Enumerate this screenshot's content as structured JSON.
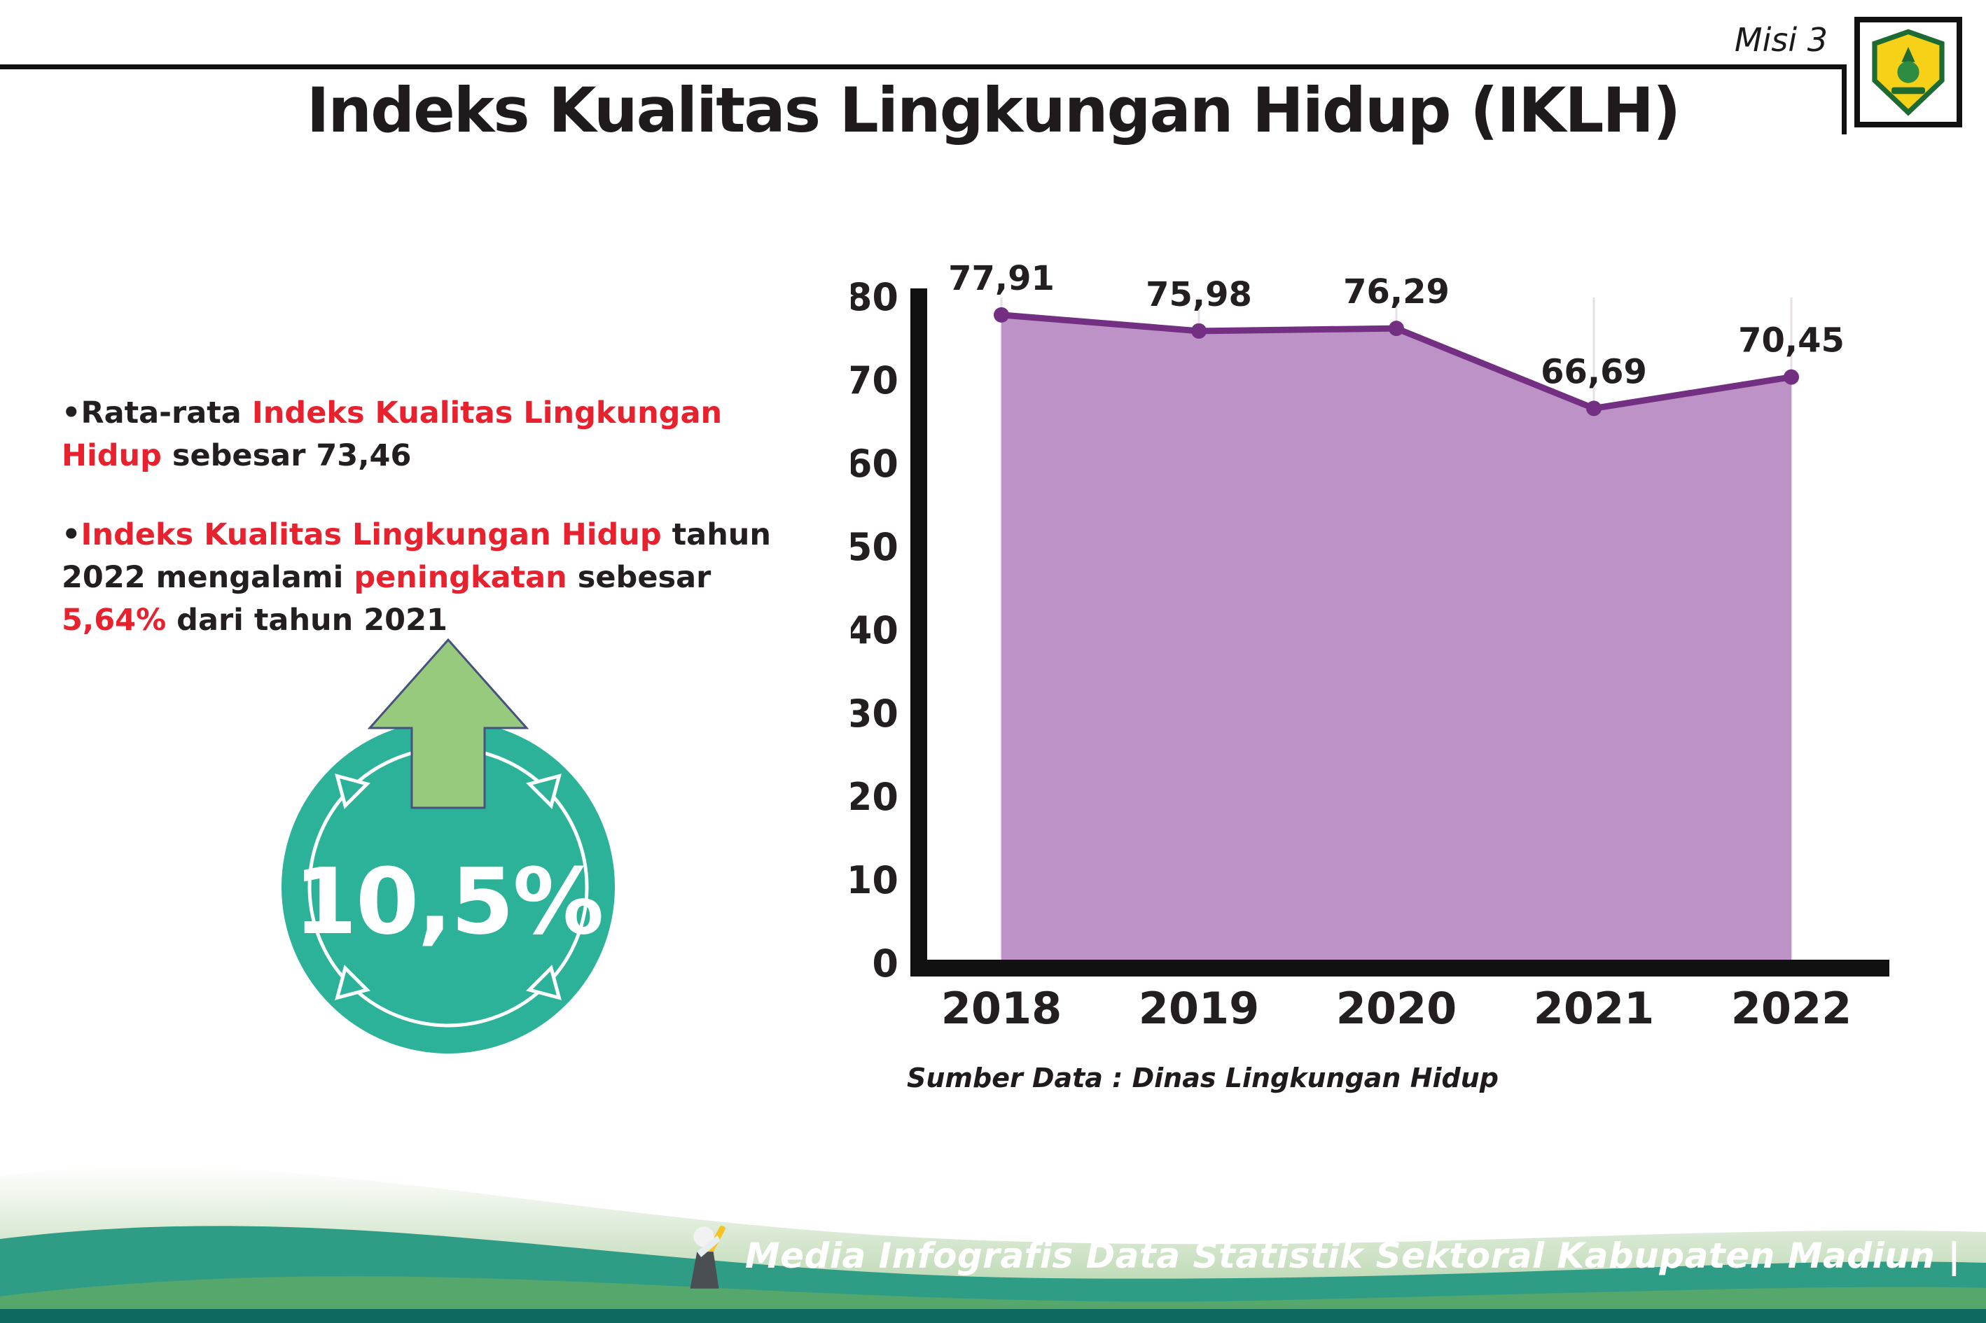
{
  "header": {
    "misi_label": "Misi 3",
    "title": "Indeks Kualitas Lingkungan Hidup (IKLH)",
    "logo_icon": "kabupaten-madiun-crest"
  },
  "colors": {
    "accent_red": "#e8212e",
    "text_black": "#231f20",
    "area_fill": "#bd92c7",
    "line_purple": "#732f82",
    "badge_teal": "#2bb298",
    "arrow_green": "#97ca7d",
    "footer_teal": "#2f9c86",
    "footer_green": "#55a76c",
    "gridline": "#e5dfe8",
    "axis_black": "#111111"
  },
  "bullets": [
    {
      "segments": [
        {
          "text": "•Rata-rata ",
          "color": "#231f20"
        },
        {
          "text": "Indeks Kualitas Lingkungan Hidup",
          "color": "#e8212e"
        },
        {
          "text": " sebesar 73,46",
          "color": "#231f20"
        }
      ]
    },
    {
      "segments": [
        {
          "text": "•",
          "color": "#231f20"
        },
        {
          "text": "Indeks Kualitas Lingkungan Hidup",
          "color": "#e8212e"
        },
        {
          "text": " tahun 2022 mengalami ",
          "color": "#231f20"
        },
        {
          "text": "peningkatan",
          "color": "#e8212e"
        },
        {
          "text": " sebesar ",
          "color": "#231f20"
        },
        {
          "text": "5,64%",
          "color": "#e8212e"
        },
        {
          "text": " dari tahun 2021",
          "color": "#231f20"
        }
      ]
    }
  ],
  "badge": {
    "value": "10,5%",
    "icon": "arrow-up-icon"
  },
  "chart_data": {
    "type": "area",
    "title": "",
    "xlabel": "",
    "ylabel": "",
    "categories": [
      "2018",
      "2019",
      "2020",
      "2021",
      "2022"
    ],
    "values": [
      77.91,
      75.98,
      76.29,
      66.69,
      70.45
    ],
    "value_labels": [
      "77,91",
      "75,98",
      "76,29",
      "66,69",
      "70,45"
    ],
    "ylim": [
      0,
      80
    ],
    "yticks": [
      0,
      10,
      20,
      30,
      40,
      50,
      60,
      70,
      80
    ],
    "grid": "vertical-light",
    "legend": "none",
    "series_name": "IKLH"
  },
  "source_note": "Sumber Data : Dinas Lingkungan Hidup",
  "footer": {
    "text": "Media Infografis Data Statistik Sektoral Kabupaten Madiun |",
    "mascot_icon": "mascot-writer-icon"
  }
}
